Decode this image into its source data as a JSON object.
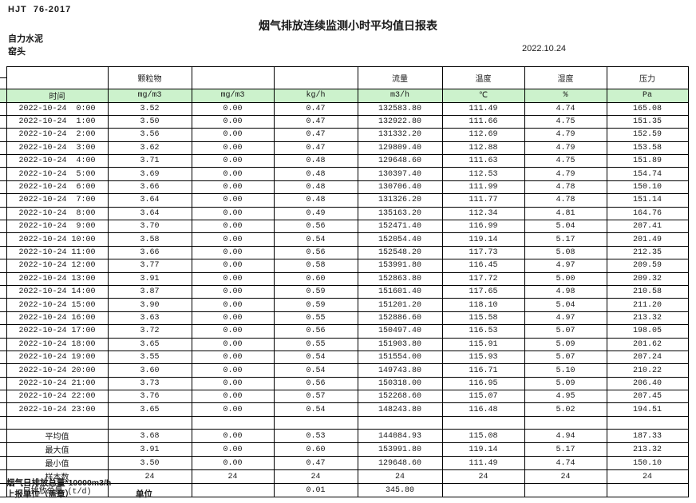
{
  "header": {
    "doc_code": "HJT  76-2017",
    "title": "烟气排放连续监测小时平均值日报表",
    "company": "自力水泥",
    "station": "窑头",
    "date": "2022.10.24"
  },
  "table": {
    "time_label": "时间",
    "group_headers": [
      "颗粒物",
      "",
      "",
      "流量",
      "温度",
      "湿度",
      "压力"
    ],
    "unit_row": [
      "mg/m3",
      "mg/m3",
      "kg/h",
      "m3/h",
      "℃",
      "%",
      "Pa"
    ],
    "rows": [
      [
        "2022-10-24  0:00",
        "3.52",
        "0.00",
        "0.47",
        "132583.80",
        "111.49",
        "4.74",
        "165.08"
      ],
      [
        "2022-10-24  1:00",
        "3.50",
        "0.00",
        "0.47",
        "132922.80",
        "111.66",
        "4.75",
        "151.35"
      ],
      [
        "2022-10-24  2:00",
        "3.56",
        "0.00",
        "0.47",
        "131332.20",
        "112.69",
        "4.79",
        "152.59"
      ],
      [
        "2022-10-24  3:00",
        "3.62",
        "0.00",
        "0.47",
        "129809.40",
        "112.88",
        "4.79",
        "153.58"
      ],
      [
        "2022-10-24  4:00",
        "3.71",
        "0.00",
        "0.48",
        "129648.60",
        "111.63",
        "4.75",
        "151.89"
      ],
      [
        "2022-10-24  5:00",
        "3.69",
        "0.00",
        "0.48",
        "130397.40",
        "112.53",
        "4.79",
        "154.74"
      ],
      [
        "2022-10-24  6:00",
        "3.66",
        "0.00",
        "0.48",
        "130706.40",
        "111.99",
        "4.78",
        "150.10"
      ],
      [
        "2022-10-24  7:00",
        "3.64",
        "0.00",
        "0.48",
        "131326.20",
        "111.77",
        "4.78",
        "151.14"
      ],
      [
        "2022-10-24  8:00",
        "3.64",
        "0.00",
        "0.49",
        "135163.20",
        "112.34",
        "4.81",
        "164.76"
      ],
      [
        "2022-10-24  9:00",
        "3.70",
        "0.00",
        "0.56",
        "152471.40",
        "116.99",
        "5.04",
        "207.41"
      ],
      [
        "2022-10-24 10:00",
        "3.58",
        "0.00",
        "0.54",
        "152054.40",
        "119.14",
        "5.17",
        "201.49"
      ],
      [
        "2022-10-24 11:00",
        "3.66",
        "0.00",
        "0.56",
        "152548.20",
        "117.73",
        "5.08",
        "212.35"
      ],
      [
        "2022-10-24 12:00",
        "3.77",
        "0.00",
        "0.58",
        "153991.80",
        "116.45",
        "4.97",
        "209.59"
      ],
      [
        "2022-10-24 13:00",
        "3.91",
        "0.00",
        "0.60",
        "152863.80",
        "117.72",
        "5.00",
        "209.32"
      ],
      [
        "2022-10-24 14:00",
        "3.87",
        "0.00",
        "0.59",
        "151601.40",
        "117.65",
        "4.98",
        "210.58"
      ],
      [
        "2022-10-24 15:00",
        "3.90",
        "0.00",
        "0.59",
        "151201.20",
        "118.10",
        "5.04",
        "211.20"
      ],
      [
        "2022-10-24 16:00",
        "3.63",
        "0.00",
        "0.55",
        "152886.60",
        "115.58",
        "4.97",
        "213.32"
      ],
      [
        "2022-10-24 17:00",
        "3.72",
        "0.00",
        "0.56",
        "150497.40",
        "116.53",
        "5.07",
        "198.05"
      ],
      [
        "2022-10-24 18:00",
        "3.65",
        "0.00",
        "0.55",
        "151903.80",
        "115.91",
        "5.09",
        "201.62"
      ],
      [
        "2022-10-24 19:00",
        "3.55",
        "0.00",
        "0.54",
        "151554.00",
        "115.93",
        "5.07",
        "207.24"
      ],
      [
        "2022-10-24 20:00",
        "3.60",
        "0.00",
        "0.54",
        "149743.80",
        "116.71",
        "5.10",
        "210.22"
      ],
      [
        "2022-10-24 21:00",
        "3.73",
        "0.00",
        "0.56",
        "150318.00",
        "116.95",
        "5.09",
        "206.40"
      ],
      [
        "2022-10-24 22:00",
        "3.76",
        "0.00",
        "0.57",
        "152268.60",
        "115.07",
        "4.95",
        "207.45"
      ],
      [
        "2022-10-24 23:00",
        "3.65",
        "0.00",
        "0.54",
        "148243.80",
        "116.48",
        "5.02",
        "194.51"
      ]
    ],
    "summary": [
      [
        "平均值",
        "3.68",
        "0.00",
        "0.53",
        "144084.93",
        "115.08",
        "4.94",
        "187.33"
      ],
      [
        "最大值",
        "3.91",
        "0.00",
        "0.60",
        "153991.80",
        "119.14",
        "5.17",
        "213.32"
      ],
      [
        "最小值",
        "3.50",
        "0.00",
        "0.47",
        "129648.60",
        "111.49",
        "4.74",
        "150.10"
      ],
      [
        "样本数",
        "24",
        "24",
        "24",
        "24",
        "24",
        "24",
        "24"
      ],
      [
        "日排放总量 (t/d)",
        "",
        "",
        "0.01",
        "345.80",
        "",
        "",
        ""
      ]
    ]
  },
  "footer": {
    "note": "烟气日排放总量*10000m3/h",
    "report_unit_label": "上报单位（盖章）",
    "unit_label": "单位"
  },
  "colors": {
    "header_green": "#ccf2cc"
  }
}
